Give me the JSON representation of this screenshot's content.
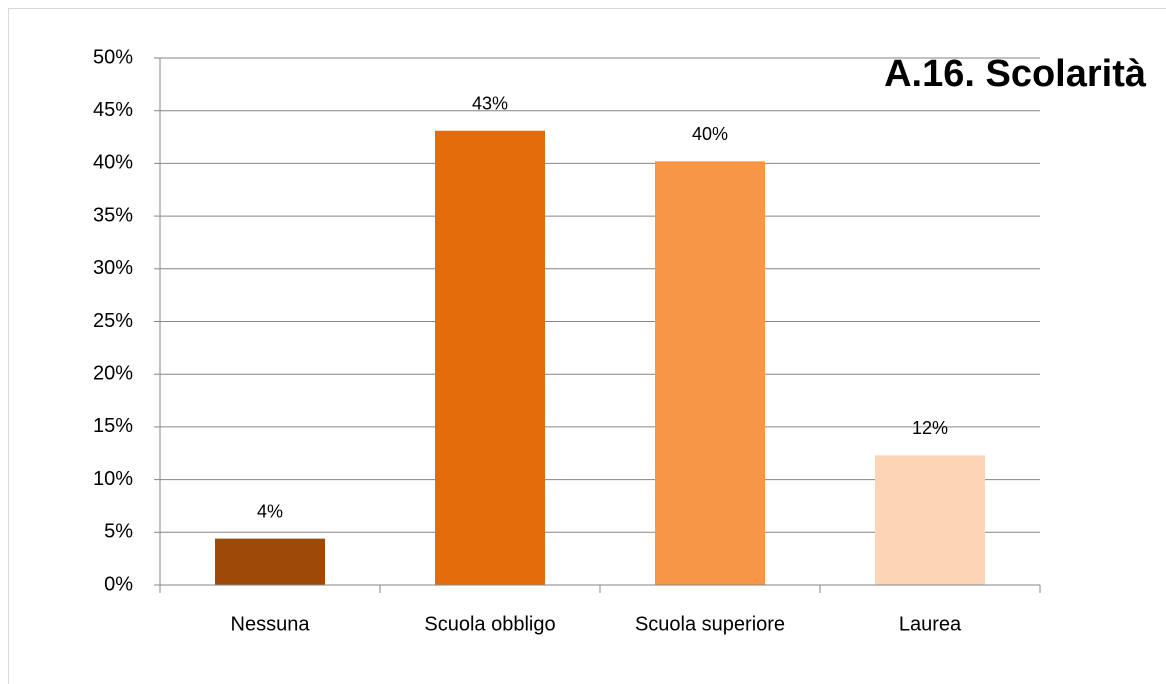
{
  "chart_data": {
    "type": "bar",
    "title": "A.16. Scolarità",
    "categories": [
      "Nessuna",
      "Scuola obbligo",
      "Scuola superiore",
      "Laurea"
    ],
    "values": [
      4.4,
      43.1,
      40.2,
      12.3
    ],
    "value_labels": [
      "4%",
      "43%",
      "40%",
      "12%"
    ],
    "colors": [
      "#9c4a06",
      "#e36c0a",
      "#f79646",
      "#fbd5b5"
    ],
    "ylim": [
      0,
      50
    ],
    "yticks": [
      {
        "value": 0,
        "label": "0%"
      },
      {
        "value": 5,
        "label": "5%"
      },
      {
        "value": 10,
        "label": "10%"
      },
      {
        "value": 15,
        "label": "15%"
      },
      {
        "value": 20,
        "label": "20%"
      },
      {
        "value": 25,
        "label": "25%"
      },
      {
        "value": 30,
        "label": "30%"
      },
      {
        "value": 35,
        "label": "35%"
      },
      {
        "value": 40,
        "label": "40%"
      },
      {
        "value": 45,
        "label": "45%"
      },
      {
        "value": 50,
        "label": "50%"
      }
    ],
    "grid": true
  }
}
